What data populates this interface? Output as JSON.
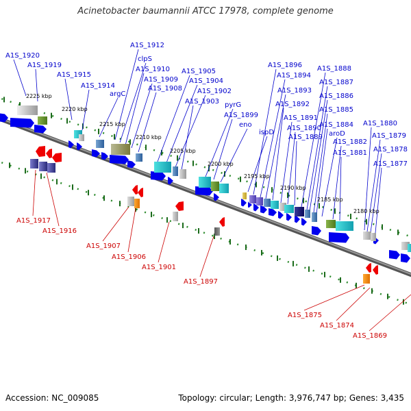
{
  "title": "Acinetobacter baumannii ATCC 17978, complete genome",
  "footer": {
    "accession": "Accession: NC_009085",
    "summary": "Topology: circular; Length: 3,976,747 bp; Genes: 3,435"
  },
  "colors": {
    "forward_label": "#0000cc",
    "reverse_label": "#cc0000",
    "backbone": "#777777",
    "tick_dots": "#2e8b2e"
  },
  "scale_ticks": [
    "2225 kbp",
    "2220 kbp",
    "2215 kbp",
    "2210 kbp",
    "2205 kbp",
    "2200 kbp",
    "2195 kbp",
    "2190 kbp",
    "2185 kbp",
    "2180 kbp"
  ],
  "forward_genes": [
    "A1S_1920",
    "A1S_1919",
    "A1S_1915",
    "A1S_1914",
    "argC",
    "A1S_1912",
    "clpS",
    "A1S_1910",
    "A1S_1909",
    "A1S_1908",
    "A1S_1905",
    "A1S_1904",
    "A1S_1902",
    "A1S_1903",
    "pyrG",
    "A1S_1899",
    "eno",
    "ispD",
    "A1S_1896",
    "A1S_1894",
    "A1S_1893",
    "A1S_1892",
    "A1S_1891",
    "A1S_1890",
    "A1S_1889",
    "A1S_1888",
    "A1S_1887",
    "A1S_1886",
    "A1S_1885",
    "A1S_1884",
    "aroD",
    "A1S_1882",
    "A1S_1881",
    "A1S_1880",
    "A1S_1879",
    "A1S_1878",
    "A1S_1877"
  ],
  "reverse_genes": [
    "A1S_1917",
    "A1S_1916",
    "A1S_1907",
    "A1S_1906",
    "A1S_1901",
    "A1S_1897",
    "A1S_1875",
    "A1S_1874",
    "A1S_1869"
  ]
}
